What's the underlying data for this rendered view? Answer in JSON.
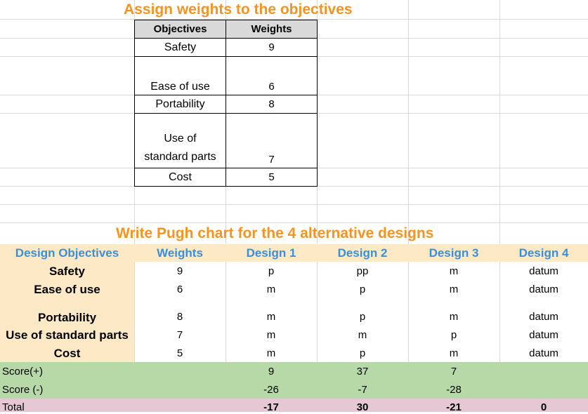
{
  "weights_section": {
    "title": "Assign weights to the objectives",
    "headers": {
      "objectives": "Objectives",
      "weights": "Weights"
    },
    "rows": [
      {
        "objective": "Safety",
        "weight": "9"
      },
      {
        "objective": "Ease of use",
        "weight": "6"
      },
      {
        "objective": "Portability",
        "weight": "8"
      },
      {
        "objective_line1": "Use of",
        "objective_line2": "standard parts",
        "weight": "7"
      },
      {
        "objective": "Cost",
        "weight": "5"
      }
    ]
  },
  "pugh_section": {
    "title": "Write Pugh chart for the 4 alternative designs",
    "headers": [
      "Design Objectives",
      "Weights",
      "Design 1",
      "Design 2",
      "Design 3",
      "Design 4"
    ],
    "rows": [
      {
        "objective": "Safety",
        "weight": "9",
        "d1": "p",
        "d2": "pp",
        "d3": "m",
        "d4": "datum"
      },
      {
        "objective": "Ease of use",
        "weight": "6",
        "d1": "m",
        "d2": "p",
        "d3": "m",
        "d4": "datum"
      },
      {
        "objective": "Portability",
        "weight": "8",
        "d1": "m",
        "d2": "p",
        "d3": "m",
        "d4": "datum"
      },
      {
        "objective": "Use of standard parts",
        "weight": "7",
        "d1": "m",
        "d2": "m",
        "d3": "p",
        "d4": "datum"
      },
      {
        "objective": "Cost",
        "weight": "5",
        "d1": "m",
        "d2": "p",
        "d3": "m",
        "d4": "datum"
      }
    ],
    "score_plus": {
      "label": "Score(+)",
      "d1": "9",
      "d2": "37",
      "d3": "7",
      "d4": ""
    },
    "score_minus": {
      "label": "Score (-)",
      "d1": "-26",
      "d2": "-7",
      "d3": "-28",
      "d4": ""
    },
    "total": {
      "label": "Total",
      "d1": "-17",
      "d2": "30",
      "d3": "-21",
      "d4": "0"
    }
  },
  "colors": {
    "title": "#f79320",
    "header_fill": "#fde9c5",
    "header_text": "#3b8fd8",
    "score_fill": "#b7d8a7",
    "total_fill": "#e6c8d4",
    "gray_header": "#d9d9d9"
  }
}
